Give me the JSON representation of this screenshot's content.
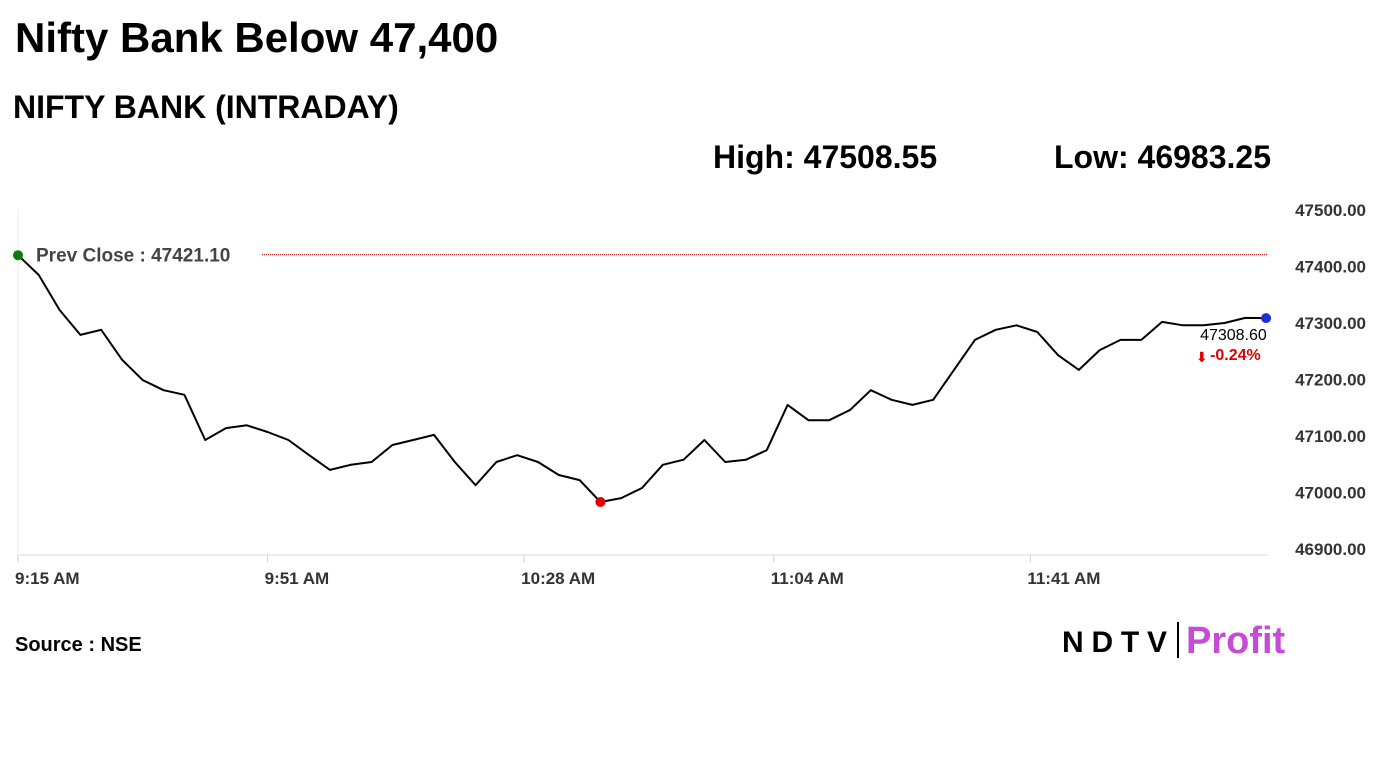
{
  "chart_data": {
    "type": "line",
    "title": "Nifty Bank Below 47,400",
    "subtitle": "NIFTY BANK (INTRADAY)",
    "high_label": "High: 47508.55",
    "low_label": "Low: 46983.25",
    "prev_close": 47421.1,
    "prev_close_label": "Prev Close : 47421.10",
    "last_label": "47308.60",
    "change_label": "-0.24%",
    "source": "Source : NSE",
    "brand": "NDTV",
    "brand2": "Profit",
    "x": [
      "9:15 AM",
      "9:18 AM",
      "9:21 AM",
      "9:24 AM",
      "9:27 AM",
      "9:30 AM",
      "9:33 AM",
      "9:36 AM",
      "9:39 AM",
      "9:42 AM",
      "9:45 AM",
      "9:48 AM",
      "9:51 AM",
      "9:54 AM",
      "9:57 AM",
      "10:00 AM",
      "10:03 AM",
      "10:06 AM",
      "10:09 AM",
      "10:12 AM",
      "10:15 AM",
      "10:18 AM",
      "10:21 AM",
      "10:24 AM",
      "10:27 AM",
      "10:30 AM",
      "10:33 AM",
      "10:36 AM",
      "10:39 AM",
      "10:42 AM",
      "10:45 AM",
      "10:48 AM",
      "10:51 AM",
      "10:54 AM",
      "10:57 AM",
      "11:00 AM",
      "11:03 AM",
      "11:06 AM",
      "11:09 AM",
      "11:12 AM",
      "11:15 AM",
      "11:18 AM",
      "11:21 AM",
      "11:24 AM",
      "11:27 AM",
      "11:30 AM",
      "11:33 AM",
      "11:36 AM",
      "11:39 AM",
      "11:42 AM",
      "11:45 AM",
      "11:48 AM",
      "11:51 AM",
      "11:54 AM",
      "11:57 AM",
      "12:00 PM",
      "12:03 PM",
      "12:06 PM",
      "12:09 PM",
      "12:12 PM",
      "12:15 PM"
    ],
    "series": [
      {
        "name": "NIFTY BANK",
        "color": "#000000",
        "values": [
          47420,
          47385,
          47323,
          47279,
          47288,
          47235,
          47199,
          47181,
          47173,
          47093,
          47114,
          47119,
          47107,
          47093,
          47066,
          47040,
          47049,
          47054,
          47084,
          47093,
          47102,
          47054,
          47013,
          47054,
          47066,
          47054,
          47031,
          47022,
          46983.25,
          46990,
          47008,
          47049,
          47058,
          47093,
          47054,
          47058,
          47075,
          47155,
          47128,
          47128,
          47146,
          47181,
          47164,
          47155,
          47164,
          47217,
          47270,
          47288,
          47296,
          47284,
          47243,
          47217,
          47252,
          47270,
          47270,
          47302,
          47296,
          47296,
          47300,
          47309,
          47308.6
        ]
      }
    ],
    "start_color": "#0a7d0a",
    "low_color": "#e00000",
    "end_color": "#1f2fd0",
    "prev_close_color": "#cc0000",
    "change_color": "#e00000",
    "xlim": [
      "9:15 AM",
      "12:16 PM"
    ],
    "xticks": [
      "9:15 AM",
      "9:51 AM",
      "10:28 AM",
      "11:04 AM",
      "11:41 AM"
    ],
    "ylim": [
      46900,
      47500
    ],
    "yticks": [
      {
        "value": 46900,
        "label": "46900.00"
      },
      {
        "value": 47000,
        "label": "47000.00"
      },
      {
        "value": 47100,
        "label": "47100.00"
      },
      {
        "value": 47200,
        "label": "47200.00"
      },
      {
        "value": 47300,
        "label": "47300.00"
      },
      {
        "value": 47400,
        "label": "47400.00"
      },
      {
        "value": 47500,
        "label": "47500.00"
      }
    ]
  }
}
